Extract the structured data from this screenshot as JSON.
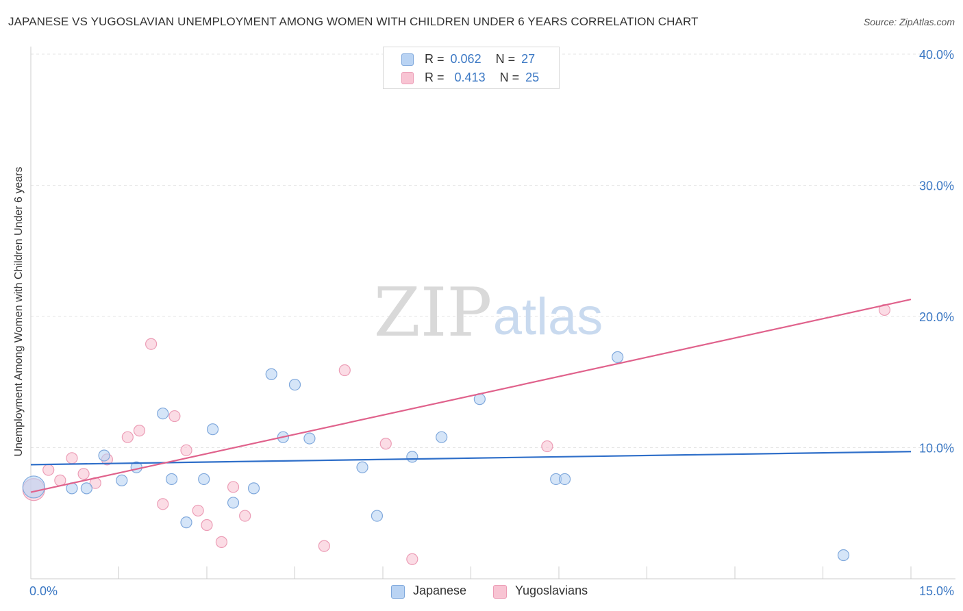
{
  "title": "JAPANESE VS YUGOSLAVIAN UNEMPLOYMENT AMONG WOMEN WITH CHILDREN UNDER 6 YEARS CORRELATION CHART",
  "source": "Source: ZipAtlas.com",
  "watermark": {
    "zip": "ZIP",
    "atlas": "atlas"
  },
  "legend": {
    "rows": [
      {
        "r_label": "R =",
        "r_value": "0.062",
        "n_label": "N =",
        "n_value": "27"
      },
      {
        "r_label": "R =",
        "r_value": "0.413",
        "n_label": "N =",
        "n_value": "25"
      }
    ]
  },
  "bottom_legend": {
    "japanese": "Japanese",
    "yugoslavians": "Yugoslavians"
  },
  "colors": {
    "japanese_fill": "#b9d3f3",
    "japanese_stroke": "#7fa8dc",
    "japanese_line": "#2f6fc9",
    "yugoslavian_fill": "#f8c4d3",
    "yugoslavian_stroke": "#ec9db6",
    "yugoslavian_line": "#e0628c",
    "tick_label": "#3b78c4",
    "grid": "#e5e5e5"
  },
  "chart_data": {
    "type": "scatter",
    "title": "JAPANESE VS YUGOSLAVIAN UNEMPLOYMENT AMONG WOMEN WITH CHILDREN UNDER 6 YEARS CORRELATION CHART",
    "xlabel": "",
    "ylabel": "Unemployment Among Women with Children Under 6 years",
    "xlim": [
      0,
      15
    ],
    "ylim": [
      0,
      40
    ],
    "x_tick_labels": [
      "0.0%",
      "15.0%"
    ],
    "y_ticks": [
      10,
      20,
      30,
      40
    ],
    "y_tick_labels": [
      "10.0%",
      "20.0%",
      "30.0%",
      "40.0%"
    ],
    "grid": true,
    "legend_position": "top-center",
    "series": [
      {
        "name": "Japanese",
        "R": 0.062,
        "N": 27,
        "trend": {
          "x": [
            0,
            15
          ],
          "y": [
            8.7,
            9.7
          ]
        },
        "points": [
          {
            "x": 0.05,
            "y": 7.0,
            "big": true
          },
          {
            "x": 0.7,
            "y": 6.9
          },
          {
            "x": 0.95,
            "y": 6.9
          },
          {
            "x": 1.25,
            "y": 9.4
          },
          {
            "x": 1.55,
            "y": 7.5
          },
          {
            "x": 1.8,
            "y": 8.5
          },
          {
            "x": 2.25,
            "y": 12.6
          },
          {
            "x": 2.4,
            "y": 7.6
          },
          {
            "x": 2.65,
            "y": 4.3
          },
          {
            "x": 2.95,
            "y": 7.6
          },
          {
            "x": 3.1,
            "y": 11.4
          },
          {
            "x": 3.45,
            "y": 5.8
          },
          {
            "x": 3.8,
            "y": 6.9
          },
          {
            "x": 4.1,
            "y": 15.6
          },
          {
            "x": 4.3,
            "y": 10.8
          },
          {
            "x": 4.5,
            "y": 14.8
          },
          {
            "x": 4.75,
            "y": 10.7
          },
          {
            "x": 5.65,
            "y": 8.5
          },
          {
            "x": 5.9,
            "y": 4.8
          },
          {
            "x": 6.5,
            "y": 9.3
          },
          {
            "x": 7.0,
            "y": 10.8
          },
          {
            "x": 7.65,
            "y": 13.7
          },
          {
            "x": 8.95,
            "y": 7.6
          },
          {
            "x": 9.1,
            "y": 7.6
          },
          {
            "x": 10.0,
            "y": 16.9
          },
          {
            "x": 13.85,
            "y": 1.8
          }
        ]
      },
      {
        "name": "Yugoslavians",
        "R": 0.413,
        "N": 25,
        "trend": {
          "x": [
            0,
            15
          ],
          "y": [
            6.6,
            21.3
          ]
        },
        "points": [
          {
            "x": 0.05,
            "y": 6.8,
            "big": true
          },
          {
            "x": 0.3,
            "y": 8.3
          },
          {
            "x": 0.5,
            "y": 7.5
          },
          {
            "x": 0.7,
            "y": 9.2
          },
          {
            "x": 0.9,
            "y": 8.0
          },
          {
            "x": 1.1,
            "y": 7.3
          },
          {
            "x": 1.3,
            "y": 9.1
          },
          {
            "x": 1.65,
            "y": 10.8
          },
          {
            "x": 1.85,
            "y": 11.3
          },
          {
            "x": 2.05,
            "y": 17.9
          },
          {
            "x": 2.25,
            "y": 5.7
          },
          {
            "x": 2.45,
            "y": 12.4
          },
          {
            "x": 2.65,
            "y": 9.8
          },
          {
            "x": 2.85,
            "y": 5.2
          },
          {
            "x": 3.0,
            "y": 4.1
          },
          {
            "x": 3.25,
            "y": 2.8
          },
          {
            "x": 3.45,
            "y": 7.0
          },
          {
            "x": 3.65,
            "y": 4.8
          },
          {
            "x": 5.0,
            "y": 2.5
          },
          {
            "x": 5.35,
            "y": 15.9
          },
          {
            "x": 6.05,
            "y": 10.3
          },
          {
            "x": 6.5,
            "y": 1.5
          },
          {
            "x": 8.8,
            "y": 10.1
          },
          {
            "x": 14.55,
            "y": 20.5
          }
        ]
      }
    ]
  }
}
